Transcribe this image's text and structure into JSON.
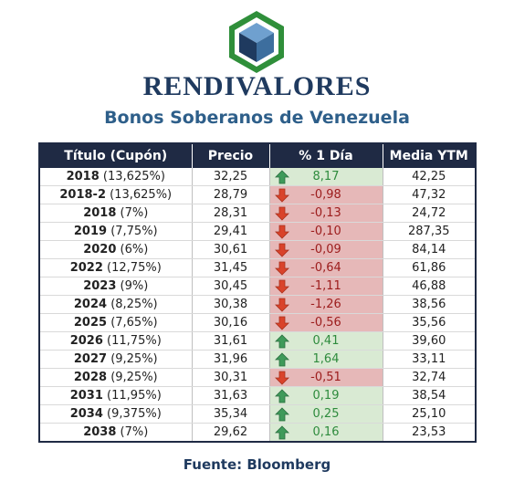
{
  "brand": {
    "name": "RENDIVALORES"
  },
  "title": "Bonos Soberanos de Venezuela",
  "colors": {
    "up": "#2e8b3d",
    "down": "#d9432b",
    "up_bg": "#d9ead3",
    "down_bg": "#e6b8b8",
    "header": "#1f2a44"
  },
  "table": {
    "headers": [
      "Título (Cupón)",
      "Precio",
      "% 1 Día",
      "Media YTM"
    ],
    "rows": [
      {
        "year": "2018",
        "coupon": "(13,625%)",
        "precio": "32,25",
        "change": "8,17",
        "dir": "up",
        "ytm": "42,25"
      },
      {
        "year": "2018-2",
        "coupon": "(13,625%)",
        "precio": "28,79",
        "change": "-0,98",
        "dir": "down",
        "ytm": "47,32"
      },
      {
        "year": "2018",
        "coupon": "(7%)",
        "precio": "28,31",
        "change": "-0,13",
        "dir": "down",
        "ytm": "24,72"
      },
      {
        "year": "2019",
        "coupon": "(7,75%)",
        "precio": "29,41",
        "change": "-0,10",
        "dir": "down",
        "ytm": "287,35"
      },
      {
        "year": "2020",
        "coupon": "(6%)",
        "precio": "30,61",
        "change": "-0,09",
        "dir": "down",
        "ytm": "84,14"
      },
      {
        "year": "2022",
        "coupon": "(12,75%)",
        "precio": "31,45",
        "change": "-0,64",
        "dir": "down",
        "ytm": "61,86"
      },
      {
        "year": "2023",
        "coupon": "(9%)",
        "precio": "30,45",
        "change": "-1,11",
        "dir": "down",
        "ytm": "46,88"
      },
      {
        "year": "2024",
        "coupon": "(8,25%)",
        "precio": "30,38",
        "change": "-1,26",
        "dir": "down",
        "ytm": "38,56"
      },
      {
        "year": "2025",
        "coupon": "(7,65%)",
        "precio": "30,16",
        "change": "-0,56",
        "dir": "down",
        "ytm": "35,56"
      },
      {
        "year": "2026",
        "coupon": "(11,75%)",
        "precio": "31,61",
        "change": "0,41",
        "dir": "up",
        "ytm": "39,60"
      },
      {
        "year": "2027",
        "coupon": "(9,25%)",
        "precio": "31,96",
        "change": "1,64",
        "dir": "up",
        "ytm": "33,11"
      },
      {
        "year": "2028",
        "coupon": "(9,25%)",
        "precio": "30,31",
        "change": "-0,51",
        "dir": "down",
        "ytm": "32,74"
      },
      {
        "year": "2031",
        "coupon": "(11,95%)",
        "precio": "31,63",
        "change": "0,19",
        "dir": "up",
        "ytm": "38,54"
      },
      {
        "year": "2034",
        "coupon": "(9,375%)",
        "precio": "35,34",
        "change": "0,25",
        "dir": "up",
        "ytm": "25,10"
      },
      {
        "year": "2038",
        "coupon": "(7%)",
        "precio": "29,62",
        "change": "0,16",
        "dir": "up",
        "ytm": "23,53"
      }
    ]
  },
  "source": "Fuente: Bloomberg",
  "icons": {
    "up": "arrow-up-icon",
    "down": "arrow-down-icon",
    "logo": "cube-logo-icon"
  }
}
